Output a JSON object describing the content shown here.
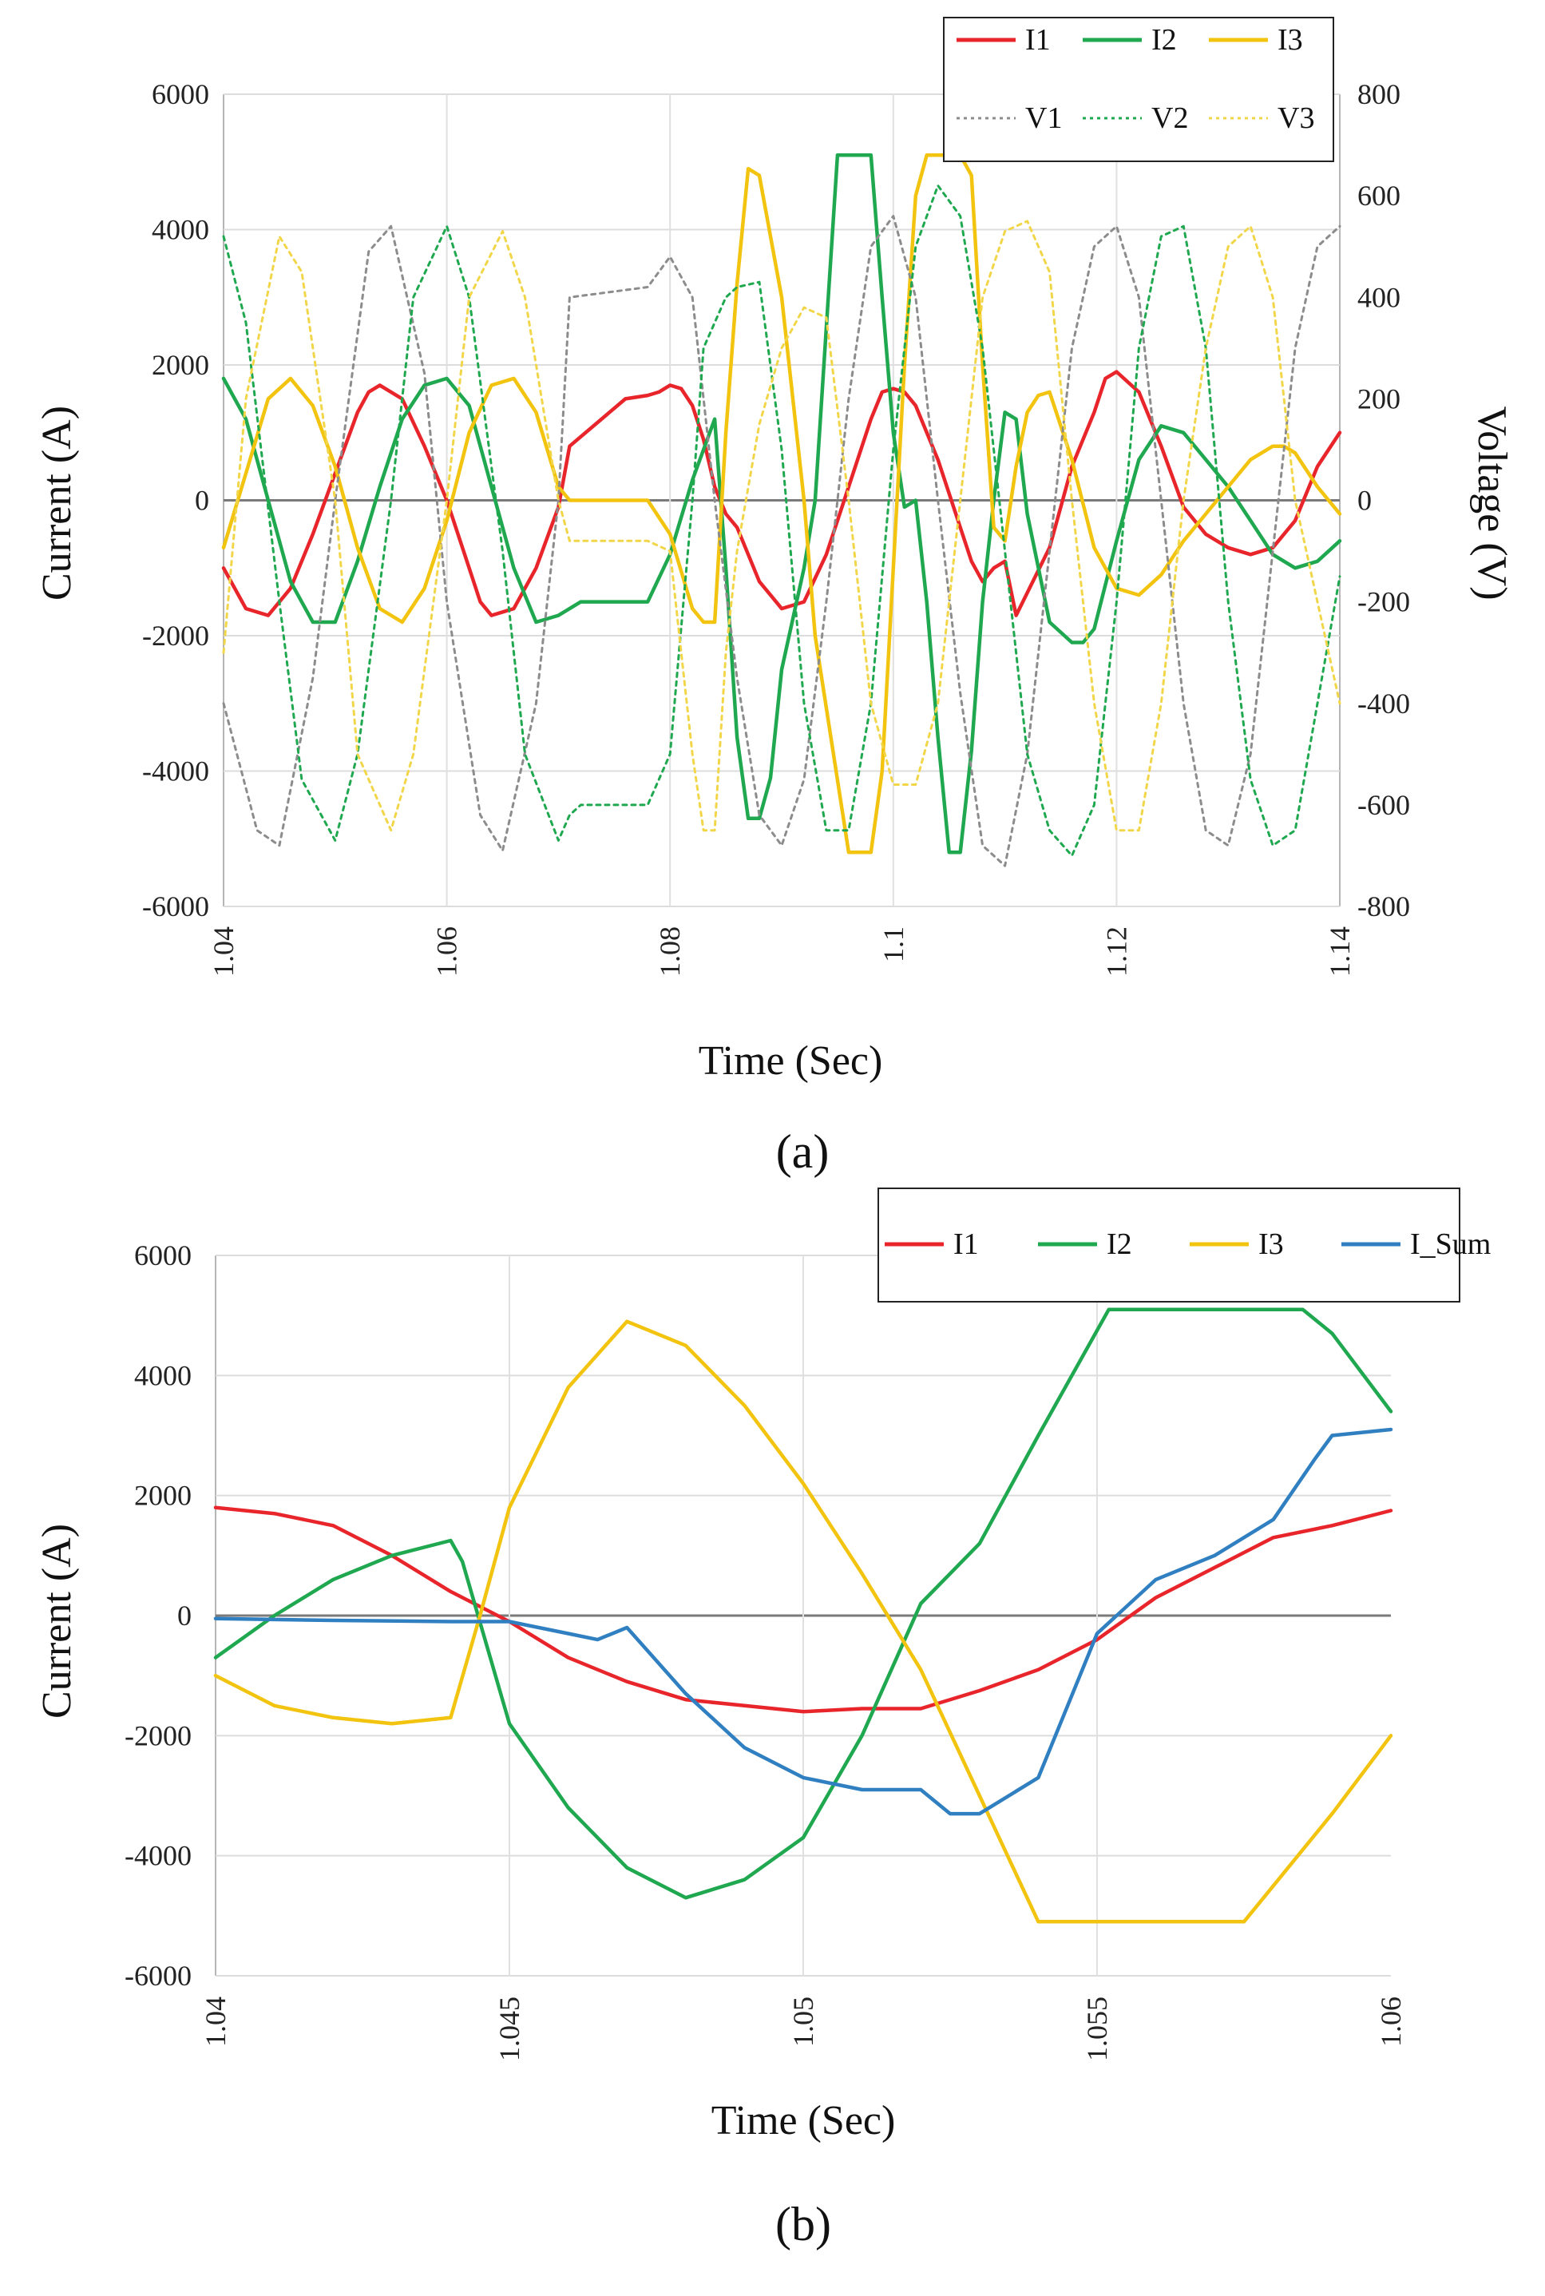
{
  "chart_data": [
    {
      "type": "line",
      "caption": "(a)",
      "xlabel": "Time (Sec)",
      "ylabel": "Current (A)",
      "y2label": "Voltage (V)",
      "xlim": [
        1.04,
        1.14
      ],
      "ylim": [
        -6000,
        6000
      ],
      "y2lim": [
        -800,
        800
      ],
      "xticks": [
        "1.04",
        "1.06",
        "1.08",
        "1.1",
        "1.12",
        "1.14"
      ],
      "yticks": [
        "6000",
        "4000",
        "2000",
        "0",
        "-2000",
        "-4000",
        "-6000"
      ],
      "y2ticks": [
        "800",
        "600",
        "400",
        "200",
        "0",
        "-200",
        "-400",
        "-600",
        "-800"
      ],
      "legend": [
        "I1",
        "I2",
        "I3",
        "V1",
        "V2",
        "V3"
      ],
      "legend_position": "top-right",
      "colors": {
        "I1": "#e8252b",
        "I2": "#1fa84f",
        "I3": "#f2c40f",
        "V1": "#8c8c8c",
        "V2": "#1fa84f",
        "V3": "#f2d64a"
      },
      "series": [
        {
          "name": "I1",
          "axis": "left",
          "style": "solid",
          "x": [
            1.04,
            1.042,
            1.044,
            1.046,
            1.048,
            1.05,
            1.052,
            1.053,
            1.054,
            1.056,
            1.058,
            1.06,
            1.062,
            1.063,
            1.064,
            1.066,
            1.068,
            1.07,
            1.071,
            1.076,
            1.078,
            1.079,
            1.08,
            1.081,
            1.082,
            1.083,
            1.084,
            1.085,
            1.086,
            1.087,
            1.088,
            1.089,
            1.09,
            1.091,
            1.092,
            1.094,
            1.096,
            1.098,
            1.099,
            1.1,
            1.101,
            1.102,
            1.104,
            1.106,
            1.107,
            1.108,
            1.109,
            1.11,
            1.111,
            1.114,
            1.116,
            1.118,
            1.119,
            1.12,
            1.122,
            1.124,
            1.126,
            1.128,
            1.13,
            1.132,
            1.134,
            1.136,
            1.138,
            1.14
          ],
          "values": [
            -1000,
            -1600,
            -1700,
            -1300,
            -500,
            400,
            1300,
            1600,
            1700,
            1500,
            800,
            0,
            -1000,
            -1500,
            -1700,
            -1600,
            -1000,
            -100,
            800,
            1500,
            1550,
            1600,
            1700,
            1650,
            1400,
            900,
            200,
            -200,
            -400,
            -800,
            -1200,
            -1400,
            -1600,
            -1550,
            -1500,
            -800,
            200,
            1200,
            1600,
            1650,
            1600,
            1400,
            600,
            -400,
            -900,
            -1200,
            -1000,
            -900,
            -1700,
            -700,
            500,
            1300,
            1800,
            1900,
            1600,
            800,
            -100,
            -500,
            -700,
            -800,
            -700,
            -300,
            500,
            1000
          ]
        },
        {
          "name": "I2",
          "axis": "left",
          "style": "solid",
          "x": [
            1.04,
            1.041,
            1.042,
            1.044,
            1.046,
            1.048,
            1.05,
            1.052,
            1.054,
            1.056,
            1.058,
            1.06,
            1.062,
            1.064,
            1.066,
            1.068,
            1.07,
            1.071,
            1.072,
            1.078,
            1.08,
            1.082,
            1.084,
            1.085,
            1.086,
            1.087,
            1.088,
            1.089,
            1.09,
            1.092,
            1.093,
            1.095,
            1.098,
            1.099,
            1.1,
            1.101,
            1.102,
            1.103,
            1.104,
            1.105,
            1.106,
            1.107,
            1.108,
            1.109,
            1.11,
            1.111,
            1.112,
            1.114,
            1.116,
            1.117,
            1.118,
            1.12,
            1.122,
            1.124,
            1.126,
            1.128,
            1.13,
            1.132,
            1.134,
            1.136,
            1.138,
            1.14
          ],
          "values": [
            1800,
            1500,
            1200,
            0,
            -1200,
            -1800,
            -1800,
            -900,
            200,
            1200,
            1700,
            1800,
            1400,
            200,
            -1000,
            -1800,
            -1700,
            -1600,
            -1500,
            -1500,
            -800,
            300,
            1200,
            -1000,
            -3500,
            -4700,
            -4700,
            -4100,
            -2500,
            -1000,
            0,
            5100,
            5100,
            3000,
            1000,
            -100,
            0,
            -1500,
            -3500,
            -5200,
            -5200,
            -3700,
            -1500,
            0,
            1300,
            1200,
            -200,
            -1800,
            -2100,
            -2100,
            -1900,
            -600,
            600,
            1100,
            1000,
            600,
            200,
            -300,
            -800,
            -1000,
            -900,
            -600
          ]
        },
        {
          "name": "I3",
          "axis": "left",
          "style": "solid",
          "x": [
            1.04,
            1.042,
            1.044,
            1.046,
            1.048,
            1.05,
            1.052,
            1.054,
            1.056,
            1.058,
            1.06,
            1.062,
            1.064,
            1.066,
            1.068,
            1.07,
            1.071,
            1.078,
            1.08,
            1.082,
            1.083,
            1.084,
            1.085,
            1.086,
            1.087,
            1.088,
            1.09,
            1.092,
            1.093,
            1.096,
            1.097,
            1.098,
            1.099,
            1.1,
            1.101,
            1.102,
            1.103,
            1.104,
            1.105,
            1.106,
            1.107,
            1.108,
            1.109,
            1.11,
            1.111,
            1.112,
            1.113,
            1.114,
            1.116,
            1.118,
            1.12,
            1.122,
            1.124,
            1.126,
            1.128,
            1.13,
            1.132,
            1.134,
            1.135,
            1.136,
            1.138,
            1.14
          ],
          "values": [
            -700,
            400,
            1500,
            1800,
            1400,
            500,
            -700,
            -1600,
            -1800,
            -1300,
            -300,
            1000,
            1700,
            1800,
            1300,
            200,
            0,
            0,
            -500,
            -1600,
            -1800,
            -1800,
            1000,
            3200,
            4900,
            4800,
            3000,
            0,
            -2000,
            -5200,
            -5200,
            -5200,
            -4000,
            -1000,
            2000,
            4500,
            5100,
            5100,
            5100,
            5100,
            4800,
            2000,
            -400,
            -600,
            500,
            1300,
            1550,
            1600,
            600,
            -700,
            -1300,
            -1400,
            -1100,
            -600,
            -200,
            200,
            600,
            800,
            800,
            700,
            200,
            -200
          ]
        },
        {
          "name": "V1",
          "axis": "right",
          "style": "dotted",
          "x": [
            1.04,
            1.043,
            1.045,
            1.048,
            1.05,
            1.053,
            1.055,
            1.058,
            1.06,
            1.063,
            1.065,
            1.068,
            1.07,
            1.071,
            1.078,
            1.08,
            1.082,
            1.084,
            1.086,
            1.088,
            1.09,
            1.092,
            1.094,
            1.096,
            1.098,
            1.1,
            1.102,
            1.104,
            1.106,
            1.108,
            1.11,
            1.112,
            1.114,
            1.116,
            1.118,
            1.12,
            1.122,
            1.124,
            1.126,
            1.128,
            1.13,
            1.132,
            1.134,
            1.136,
            1.138,
            1.14
          ],
          "values": [
            -400,
            -650,
            -680,
            -350,
            0,
            490,
            540,
            250,
            -200,
            -620,
            -690,
            -400,
            0,
            400,
            420,
            480,
            400,
            0,
            -350,
            -620,
            -680,
            -550,
            -200,
            200,
            500,
            560,
            400,
            0,
            -380,
            -680,
            -720,
            -500,
            -100,
            300,
            500,
            540,
            400,
            0,
            -400,
            -650,
            -680,
            -500,
            -100,
            300,
            500,
            540
          ]
        },
        {
          "name": "V2",
          "axis": "right",
          "style": "dotted",
          "x": [
            1.04,
            1.042,
            1.045,
            1.047,
            1.05,
            1.052,
            1.055,
            1.057,
            1.06,
            1.062,
            1.065,
            1.067,
            1.07,
            1.071,
            1.072,
            1.078,
            1.08,
            1.082,
            1.083,
            1.084,
            1.085,
            1.086,
            1.088,
            1.09,
            1.092,
            1.094,
            1.096,
            1.098,
            1.1,
            1.102,
            1.104,
            1.106,
            1.108,
            1.11,
            1.112,
            1.114,
            1.116,
            1.118,
            1.12,
            1.122,
            1.124,
            1.126,
            1.128,
            1.13,
            1.132,
            1.134,
            1.136,
            1.138,
            1.14
          ],
          "values": [
            520,
            350,
            -200,
            -550,
            -670,
            -500,
            0,
            400,
            540,
            400,
            -100,
            -500,
            -670,
            -620,
            -600,
            -600,
            -500,
            0,
            300,
            350,
            400,
            420,
            430,
            100,
            -400,
            -650,
            -650,
            -400,
            100,
            500,
            620,
            560,
            300,
            -100,
            -500,
            -650,
            -700,
            -600,
            -200,
            300,
            520,
            540,
            300,
            -200,
            -550,
            -680,
            -650,
            -400,
            -150
          ]
        },
        {
          "name": "V3",
          "axis": "right",
          "style": "dotted",
          "x": [
            1.04,
            1.042,
            1.045,
            1.047,
            1.05,
            1.052,
            1.055,
            1.057,
            1.06,
            1.062,
            1.065,
            1.067,
            1.07,
            1.071,
            1.078,
            1.08,
            1.082,
            1.083,
            1.084,
            1.085,
            1.086,
            1.088,
            1.09,
            1.092,
            1.094,
            1.096,
            1.098,
            1.1,
            1.102,
            1.104,
            1.106,
            1.108,
            1.11,
            1.112,
            1.114,
            1.116,
            1.118,
            1.12,
            1.122,
            1.124,
            1.126,
            1.128,
            1.13,
            1.132,
            1.134,
            1.136,
            1.138,
            1.14
          ],
          "values": [
            -300,
            200,
            520,
            450,
            0,
            -500,
            -650,
            -500,
            0,
            400,
            530,
            400,
            0,
            -80,
            -80,
            -100,
            -500,
            -650,
            -650,
            -300,
            -100,
            150,
            300,
            380,
            360,
            0,
            -400,
            -560,
            -560,
            -400,
            0,
            400,
            530,
            550,
            450,
            0,
            -400,
            -650,
            -650,
            -400,
            0,
            300,
            500,
            540,
            400,
            0,
            -200,
            -400
          ]
        }
      ]
    },
    {
      "type": "line",
      "caption": "(b)",
      "xlabel": "Time (Sec)",
      "ylabel": "Current (A)",
      "xlim": [
        1.04,
        1.06
      ],
      "ylim": [
        -6000,
        6000
      ],
      "xticks": [
        "1.04",
        "1.045",
        "1.05",
        "1.055",
        "1.06"
      ],
      "yticks": [
        "6000",
        "4000",
        "2000",
        "0",
        "-2000",
        "-4000",
        "-6000"
      ],
      "legend": [
        "I1",
        "I2",
        "I3",
        "I_Sum"
      ],
      "legend_position": "top-right",
      "colors": {
        "I1": "#e8252b",
        "I2": "#1fa84f",
        "I3": "#f2c40f",
        "I_Sum": "#2f7fc1"
      },
      "series": [
        {
          "name": "I1",
          "axis": "left",
          "style": "solid",
          "x": [
            1.04,
            1.041,
            1.042,
            1.043,
            1.044,
            1.045,
            1.046,
            1.047,
            1.048,
            1.049,
            1.05,
            1.051,
            1.052,
            1.053,
            1.054,
            1.055,
            1.056,
            1.057,
            1.058,
            1.059,
            1.06
          ],
          "values": [
            1800,
            1700,
            1500,
            1000,
            400,
            -100,
            -700,
            -1100,
            -1400,
            -1500,
            -1600,
            -1550,
            -1550,
            -1250,
            -900,
            -400,
            300,
            800,
            1300,
            1500,
            1750
          ]
        },
        {
          "name": "I2",
          "axis": "left",
          "style": "solid",
          "x": [
            1.04,
            1.041,
            1.042,
            1.043,
            1.044,
            1.0442,
            1.045,
            1.046,
            1.047,
            1.048,
            1.049,
            1.05,
            1.051,
            1.052,
            1.053,
            1.054,
            1.0552,
            1.056,
            1.057,
            1.0585,
            1.059,
            1.06
          ],
          "values": [
            -700,
            0,
            600,
            1000,
            1250,
            900,
            -1800,
            -3200,
            -4200,
            -4700,
            -4400,
            -3700,
            -2000,
            200,
            1200,
            3000,
            5100,
            5100,
            5100,
            5100,
            4700,
            3400
          ]
        },
        {
          "name": "I3",
          "axis": "left",
          "style": "solid",
          "x": [
            1.04,
            1.041,
            1.042,
            1.043,
            1.044,
            1.0445,
            1.045,
            1.046,
            1.047,
            1.048,
            1.049,
            1.05,
            1.051,
            1.052,
            1.053,
            1.054,
            1.055,
            1.056,
            1.057,
            1.0575,
            1.058,
            1.059,
            1.06
          ],
          "values": [
            -1000,
            -1500,
            -1700,
            -1800,
            -1700,
            0,
            1800,
            3800,
            4900,
            4500,
            3500,
            2200,
            700,
            -900,
            -3000,
            -5100,
            -5100,
            -5100,
            -5100,
            -5100,
            -4500,
            -3300,
            -2000
          ]
        },
        {
          "name": "I_Sum",
          "axis": "left",
          "style": "solid",
          "x": [
            1.04,
            1.042,
            1.044,
            1.045,
            1.046,
            1.0465,
            1.047,
            1.048,
            1.049,
            1.05,
            1.051,
            1.052,
            1.0525,
            1.053,
            1.054,
            1.055,
            1.056,
            1.057,
            1.058,
            1.0587,
            1.059,
            1.06
          ],
          "values": [
            -50,
            -80,
            -100,
            -100,
            -300,
            -400,
            -200,
            -1300,
            -2200,
            -2700,
            -2900,
            -2900,
            -3300,
            -3300,
            -2700,
            -300,
            600,
            1000,
            1600,
            2600,
            3000,
            3100
          ]
        }
      ]
    }
  ]
}
